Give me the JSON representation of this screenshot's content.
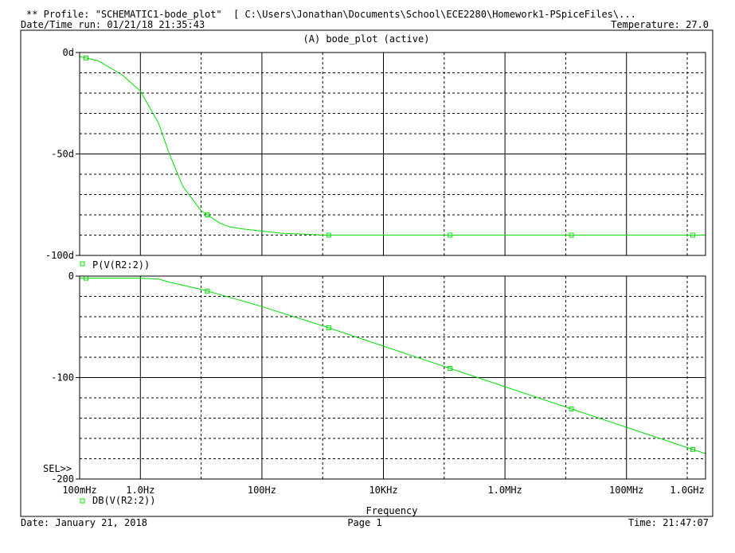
{
  "header": {
    "profile_line": "** Profile: \"SCHEMATIC1-bode_plot\"  [ C:\\Users\\Jonathan\\Documents\\School\\ECE2280\\Homework1-PSpiceFiles\\...",
    "datetime_run": "Date/Time run: 01/21/18 21:35:43",
    "temperature": "Temperature: 27.0"
  },
  "plot_title": "(A) bode_plot (active)",
  "sel_marker": "SEL>>",
  "footer": {
    "date": "Date: January 21, 2018",
    "page": "Page 1",
    "time": "Time: 21:47:07"
  },
  "colors": {
    "trace": "#00e000",
    "grid": "#000000",
    "background": "#ffffff"
  },
  "chart_data": [
    {
      "type": "line",
      "title": "",
      "scale_x": "log",
      "xlim": [
        0.1,
        2000000000
      ],
      "ylim": [
        -100,
        0
      ],
      "y_ticks": [
        {
          "value": 0,
          "label": "0d"
        },
        {
          "value": -50,
          "label": "-50d"
        },
        {
          "value": -100,
          "label": "-100d"
        }
      ],
      "grid": true,
      "series": [
        {
          "name": "P(V(R2:2))",
          "x": [
            0.1,
            0.2,
            0.5,
            1,
            2,
            3,
            5,
            10,
            20,
            30,
            50,
            100,
            200,
            500,
            1000,
            10000,
            100000,
            1000000,
            10000000,
            100000000,
            1000000000,
            2000000000
          ],
          "values": [
            -2,
            -4,
            -11,
            -19,
            -35,
            -50,
            -66,
            -78,
            -84,
            -86,
            -87,
            -88,
            -89,
            -89.5,
            -90,
            -90,
            -90,
            -90,
            -90,
            -90,
            -90,
            -90
          ]
        }
      ]
    },
    {
      "type": "line",
      "title": "",
      "xlabel": "Frequency",
      "scale_x": "log",
      "xlim": [
        0.1,
        2000000000
      ],
      "ylim": [
        -200,
        0
      ],
      "y_ticks": [
        {
          "value": 0,
          "label": "0"
        },
        {
          "value": -100,
          "label": "-100"
        },
        {
          "value": -200,
          "label": "-200"
        }
      ],
      "x_ticks": [
        {
          "value": 0.1,
          "label": "100mHz"
        },
        {
          "value": 1,
          "label": "1.0Hz"
        },
        {
          "value": 100,
          "label": "100Hz"
        },
        {
          "value": 10000,
          "label": "10KHz"
        },
        {
          "value": 1000000,
          "label": "1.0MHz"
        },
        {
          "value": 100000000,
          "label": "100MHz"
        },
        {
          "value": 1000000000,
          "label": "1.0GHz"
        }
      ],
      "grid": true,
      "series": [
        {
          "name": "DB(V(R2:2))",
          "x": [
            0.1,
            0.3,
            1,
            2,
            3,
            5,
            10,
            30,
            100,
            1000,
            10000,
            100000,
            1000000,
            10000000,
            100000000,
            1000000000,
            2000000000
          ],
          "values": [
            -2,
            -2,
            -2,
            -3,
            -6,
            -9,
            -13,
            -21,
            -30,
            -49,
            -69,
            -89,
            -109,
            -129,
            -149,
            -169,
            -175
          ]
        }
      ]
    }
  ]
}
